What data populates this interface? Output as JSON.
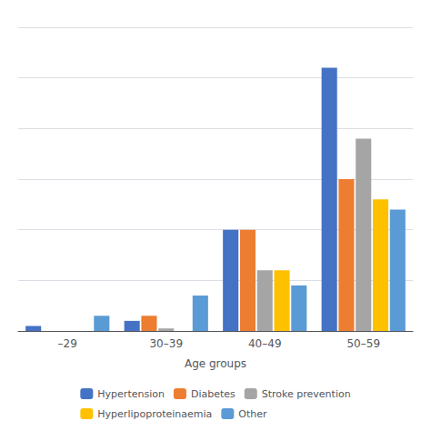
{
  "chart_data": {
    "type": "bar",
    "xlabel": "Age groups",
    "categories": [
      "–29",
      "30–39",
      "40–49",
      "50–59"
    ],
    "series": [
      {
        "name": "Hypertension",
        "color": "#4472C4",
        "values": [
          1,
          2,
          20,
          52
        ]
      },
      {
        "name": "Diabetes",
        "color": "#ED7D31",
        "values": [
          0,
          3,
          20,
          30
        ]
      },
      {
        "name": "Stroke prevention",
        "color": "#A5A5A5",
        "values": [
          0,
          0.5,
          12,
          38
        ]
      },
      {
        "name": "Hyperlipoproteinaemia",
        "color": "#FFC000",
        "values": [
          0,
          0,
          12,
          26
        ]
      },
      {
        "name": "Other",
        "color": "#5B9BD5",
        "values": [
          3,
          7,
          9,
          24
        ]
      }
    ],
    "ylim": [
      0,
      60
    ],
    "yticks": [
      0,
      10,
      20,
      30,
      40,
      50,
      60
    ],
    "grid": true,
    "legend": "bottom",
    "tick_labels": "x"
  }
}
